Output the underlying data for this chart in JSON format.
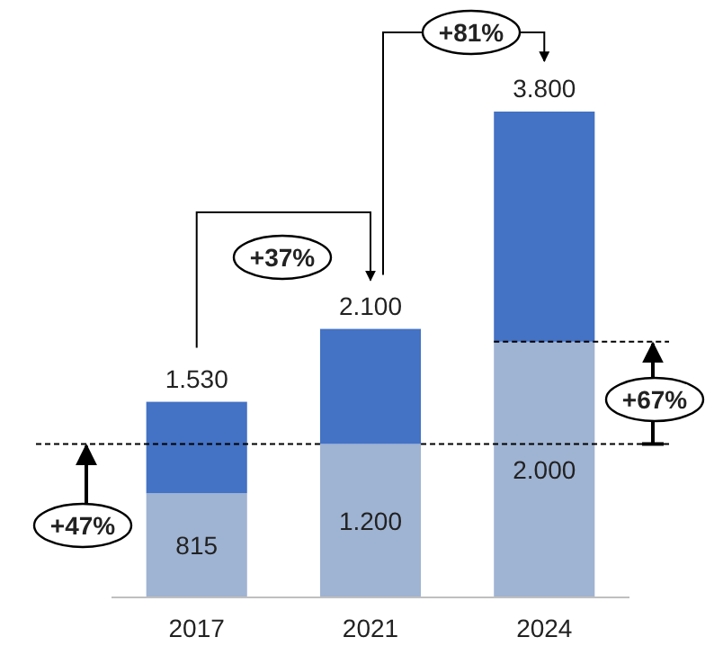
{
  "chart_data": {
    "type": "bar",
    "stacked": true,
    "categories": [
      "2017",
      "2021",
      "2024"
    ],
    "series": [
      {
        "color": "#9fb3d2",
        "values": [
          815,
          1200,
          2000
        ],
        "value_labels": [
          "815",
          "1.200",
          "2.000"
        ]
      },
      {
        "color": "#4472c4",
        "values": [
          715,
          900,
          1800
        ]
      }
    ],
    "ref_lines": [
      {
        "axis": "y",
        "value": 1200,
        "color": "#000000",
        "line_style": "dashed"
      },
      {
        "axis": "y",
        "value": 2000,
        "color": "#000000",
        "line_style": "dashed"
      }
    ],
    "totals": [
      "1.530",
      "2.100",
      "3.800"
    ],
    "annotations": [
      "+37%",
      "+81%",
      "+47%",
      "+67%"
    ]
  }
}
